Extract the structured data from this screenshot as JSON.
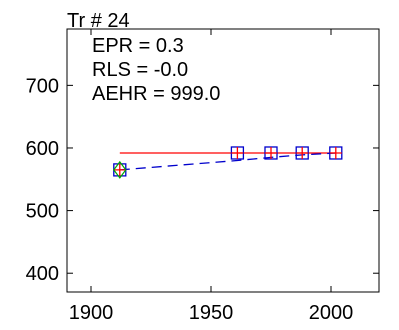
{
  "chart_data": {
    "type": "line",
    "title": "Tr # 24",
    "annotations": [
      "EPR = 0.3",
      "RLS = -0.0",
      "AEHR = 999.0"
    ],
    "xlim": [
      1890,
      2020
    ],
    "ylim": [
      370,
      790
    ],
    "x_ticks": [
      1900,
      1950,
      2000
    ],
    "y_ticks": [
      400,
      500,
      600,
      700
    ],
    "grid": false,
    "series": [
      {
        "style": "solid",
        "color": "#ff0000",
        "x": [
          1912,
          2002
        ],
        "y": [
          592,
          592
        ]
      },
      {
        "style": "dashed",
        "color": "#0000cc",
        "x": [
          1912,
          1961,
          1975,
          1988,
          2002
        ],
        "y": [
          565,
          580,
          585,
          589,
          592
        ]
      }
    ],
    "markers": [
      {
        "symbol": "square",
        "color": "#0000cc",
        "x": [
          1912,
          1961,
          1975,
          1988,
          2002
        ],
        "y": [
          565,
          592,
          592,
          592,
          592
        ]
      },
      {
        "symbol": "plus",
        "color": "#ff0000",
        "x": [
          1912,
          1961,
          1975,
          1988,
          2002
        ],
        "y": [
          565,
          592,
          592,
          592,
          592
        ]
      },
      {
        "symbol": "diamond",
        "color": "#00aa00",
        "x": [
          1912
        ],
        "y": [
          565
        ]
      }
    ]
  }
}
